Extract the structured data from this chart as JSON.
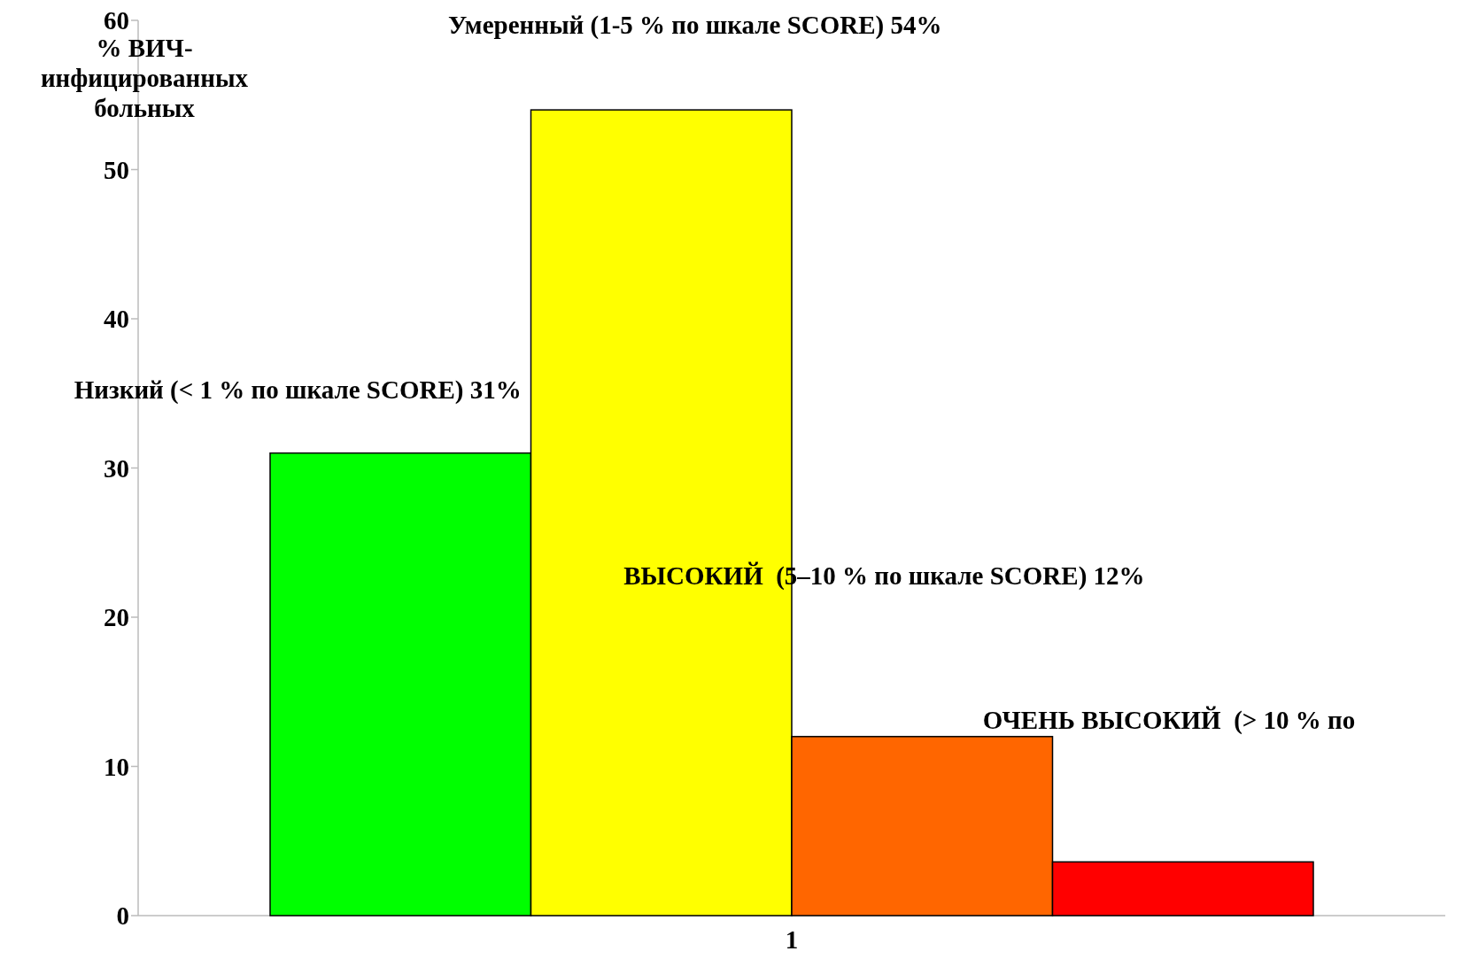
{
  "chart_data": {
    "type": "bar",
    "ylabel": "% ВИЧ-инфицированных больных",
    "categories": [
      "1"
    ],
    "series": [
      {
        "color": "#00ff00",
        "values": [
          31
        ]
      },
      {
        "color": "#ffff00",
        "values": [
          54
        ]
      },
      {
        "color": "#ff6600",
        "values": [
          12
        ]
      },
      {
        "color": "#ff0000",
        "values": [
          3.6
        ]
      }
    ],
    "annotations": [
      "Низкий (< 1 % по шкале SCORE) 31%",
      "Умеренный (1-5 % по шкале SCORE) 54%",
      "ВЫСОКИЙ  (5–10 % по шкале SCORE) 12%",
      "ОЧЕНЬ ВЫСОКИЙ  (> 10 % по"
    ],
    "ylim": [
      0,
      60
    ],
    "yticks": [
      0,
      10,
      20,
      30,
      40,
      50,
      60
    ],
    "grid": false
  }
}
